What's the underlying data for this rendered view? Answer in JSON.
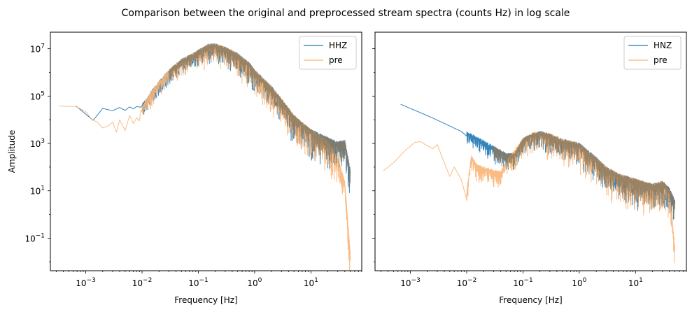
{
  "figure": {
    "title": "Comparison between the original and preprocessed stream spectra (counts Hz) in log scale",
    "colors": {
      "original": "#1f77b4",
      "pre": "#f9b577",
      "overlap": "#8c7a60"
    }
  },
  "chart_data": [
    {
      "type": "line",
      "xscale": "log",
      "yscale": "log",
      "xlabel": "Frequency [Hz]",
      "ylabel": "Amplitude",
      "xlim": [
        0.000235,
        80
      ],
      "ylim": [
        0.0042,
        50000000
      ],
      "x_ticks": [
        0.001,
        0.01,
        0.1,
        1,
        10
      ],
      "x_tick_labels": [
        [
          "10",
          "−3"
        ],
        [
          "10",
          "−2"
        ],
        [
          "10",
          "−1"
        ],
        [
          "10",
          "0"
        ],
        [
          "10",
          "1"
        ]
      ],
      "y_ticks": [
        0.1,
        10,
        1000,
        100000,
        10000000
      ],
      "y_tick_labels": [
        [
          "10",
          "−1"
        ],
        [
          "10",
          "1"
        ],
        [
          "10",
          "3"
        ],
        [
          "10",
          "5"
        ],
        [
          "10",
          "7"
        ]
      ],
      "legend": {
        "placement": "top-right",
        "entries": [
          "HHZ",
          "pre"
        ]
      },
      "series": [
        {
          "name": "HHZ",
          "role": "original",
          "x": [
            0.00067,
            0.00135,
            0.002,
            0.003,
            0.004,
            0.005,
            0.006,
            0.007,
            0.008,
            0.0095,
            0.012,
            0.015,
            0.02,
            0.03,
            0.05,
            0.08,
            0.1,
            0.15,
            0.2,
            0.3,
            0.5,
            0.8,
            1,
            2,
            3,
            5,
            10,
            20,
            30,
            40,
            50
          ],
          "y": [
            38000,
            9500,
            30000,
            24000,
            33000,
            25000,
            35000,
            29000,
            36000,
            34000,
            60000,
            140000,
            330000,
            1000000,
            2800000,
            5000000,
            7000000,
            12000000,
            13000000,
            9000000,
            5000000,
            2000000,
            1000000,
            200000,
            60000,
            12000,
            3000,
            1400,
            900,
            1100,
            60
          ]
        },
        {
          "name": "pre",
          "role": "preprocessed",
          "x": [
            0.00033,
            0.00067,
            0.001,
            0.0013,
            0.0016,
            0.002,
            0.0025,
            0.003,
            0.0035,
            0.004,
            0.005,
            0.006,
            0.007,
            0.008,
            0.009,
            0.0095,
            0.012,
            0.015,
            0.02,
            0.03,
            0.05,
            0.08,
            0.1,
            0.15,
            0.2,
            0.3,
            0.5,
            0.8,
            1,
            2,
            3,
            5,
            10,
            20,
            30,
            40,
            50
          ],
          "y": [
            38000,
            36000,
            22000,
            10000,
            8000,
            4500,
            5500,
            8000,
            3000,
            10000,
            3500,
            15000,
            7000,
            12000,
            9000,
            25000,
            60000,
            140000,
            330000,
            1000000,
            2800000,
            5000000,
            7000000,
            12000000,
            13000000,
            9000000,
            5000000,
            2000000,
            1000000,
            200000,
            60000,
            12000,
            3000,
            1000,
            200,
            20,
            0.02
          ]
        }
      ]
    },
    {
      "type": "line",
      "xscale": "log",
      "yscale": "log",
      "xlabel": "Frequency [Hz]",
      "ylabel": "",
      "xlim": [
        0.000235,
        80
      ],
      "ylim": [
        0.0042,
        50000000
      ],
      "x_ticks": [
        0.001,
        0.01,
        0.1,
        1,
        10
      ],
      "x_tick_labels": [
        [
          "10",
          "−3"
        ],
        [
          "10",
          "−2"
        ],
        [
          "10",
          "−1"
        ],
        [
          "10",
          "0"
        ],
        [
          "10",
          "1"
        ]
      ],
      "y_ticks": [
        0.1,
        10,
        1000,
        100000,
        10000000
      ],
      "y_tick_labels": [],
      "legend": {
        "placement": "top-right",
        "entries": [
          "HNZ",
          "pre"
        ]
      },
      "series": [
        {
          "name": "HNZ",
          "role": "original",
          "x": [
            0.00067,
            0.001,
            0.002,
            0.004,
            0.008,
            0.015,
            0.03,
            0.05,
            0.07,
            0.1,
            0.15,
            0.2,
            0.3,
            0.5,
            1,
            2,
            3,
            5,
            10,
            20,
            30,
            40,
            50
          ],
          "y": [
            45000,
            30000,
            15000,
            7000,
            3200,
            1500,
            600,
            300,
            300,
            1300,
            2200,
            2500,
            2000,
            1200,
            800,
            200,
            80,
            40,
            25,
            15,
            20,
            10,
            3
          ]
        },
        {
          "name": "pre",
          "role": "preprocessed",
          "x": [
            0.00033,
            0.0005,
            0.0008,
            0.0012,
            0.0015,
            0.002,
            0.0025,
            0.003,
            0.004,
            0.005,
            0.006,
            0.008,
            0.01,
            0.012,
            0.015,
            0.02,
            0.03,
            0.04,
            0.05,
            0.07,
            0.1,
            0.15,
            0.2,
            0.3,
            0.5,
            1,
            2,
            3,
            5,
            10,
            20,
            30,
            40,
            50
          ],
          "y": [
            70,
            150,
            500,
            1100,
            1200,
            800,
            600,
            900,
            150,
            40,
            100,
            30,
            8,
            250,
            100,
            80,
            60,
            50,
            150,
            400,
            1300,
            2200,
            2500,
            2000,
            1200,
            800,
            200,
            80,
            40,
            25,
            15,
            20,
            8,
            0.03
          ]
        }
      ]
    }
  ]
}
